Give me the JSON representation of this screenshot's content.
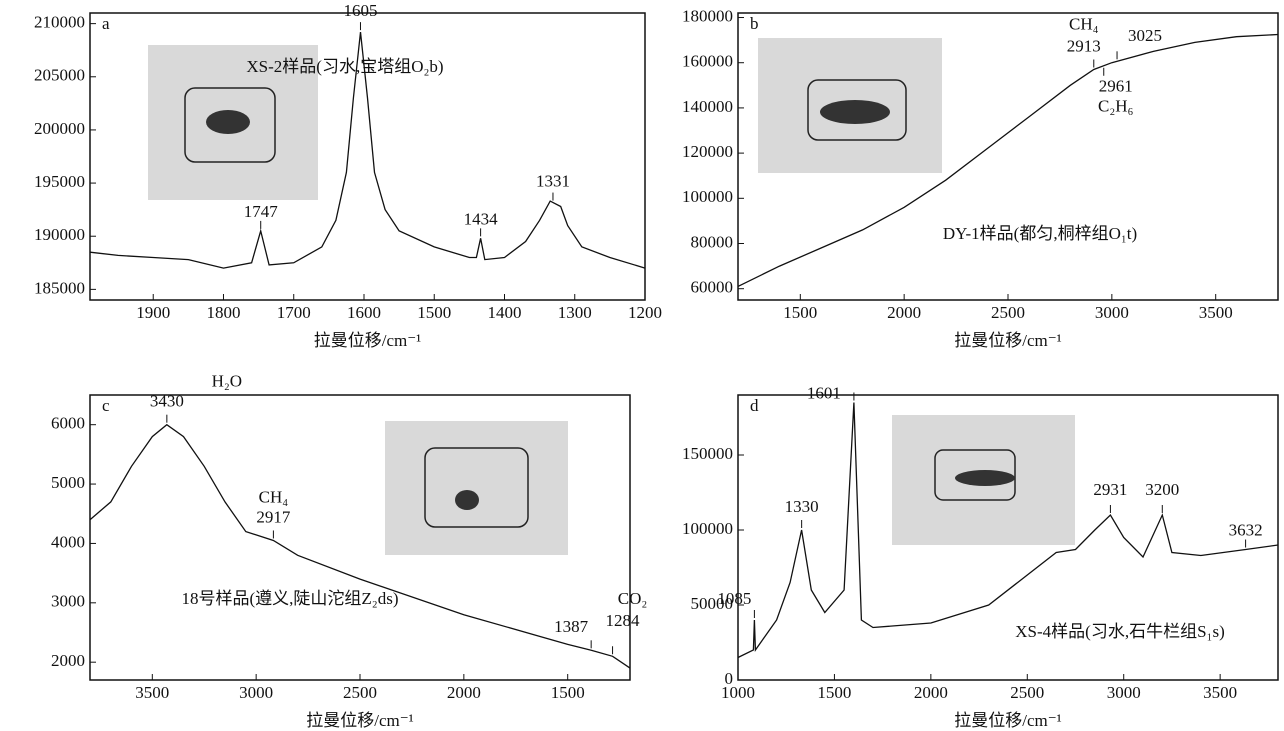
{
  "chart_data": [
    {
      "type": "line",
      "panel": "a",
      "label": "XS-2样品(习水,宝塔组O₂b)",
      "xlabel": "拉曼位移/cm⁻¹",
      "xlim": [
        1990,
        1200
      ],
      "xticks": [
        1900,
        1800,
        1700,
        1600,
        1500,
        1400,
        1300,
        1200
      ],
      "ylim": [
        184000,
        211000
      ],
      "yticks": [
        185000,
        190000,
        195000,
        200000,
        205000,
        210000
      ],
      "x": [
        1990,
        1950,
        1900,
        1850,
        1800,
        1760,
        1747,
        1735,
        1700,
        1660,
        1640,
        1625,
        1615,
        1605,
        1595,
        1585,
        1570,
        1550,
        1500,
        1450,
        1440,
        1434,
        1428,
        1400,
        1370,
        1350,
        1335,
        1320,
        1310,
        1290,
        1250,
        1200
      ],
      "values": [
        188500,
        188200,
        188000,
        187800,
        187000,
        187500,
        190500,
        187300,
        187500,
        189000,
        191500,
        196000,
        203000,
        209200,
        203000,
        196000,
        192500,
        190500,
        189000,
        188000,
        188000,
        189800,
        187800,
        188000,
        189500,
        191500,
        193300,
        192800,
        191000,
        189000,
        188000,
        187000
      ],
      "peaks": [
        {
          "x": 1747
        },
        {
          "x": 1605
        },
        {
          "x": 1434
        },
        {
          "x": 1331
        }
      ]
    },
    {
      "type": "line",
      "panel": "b",
      "label": "DY-1样品(都匀,桐梓组O₁t)",
      "xlabel": "拉曼位移/cm⁻¹",
      "xlim": [
        1200,
        3800
      ],
      "xticks": [
        1500,
        2000,
        2500,
        3000,
        3500
      ],
      "ylim": [
        55000,
        182000
      ],
      "yticks": [
        60000,
        80000,
        100000,
        120000,
        140000,
        160000,
        180000
      ],
      "x": [
        1200,
        1400,
        1600,
        1800,
        2000,
        2200,
        2400,
        2600,
        2800,
        2913,
        3000,
        3200,
        3400,
        3600,
        3800
      ],
      "values": [
        61000,
        70000,
        78000,
        86000,
        96000,
        108000,
        122000,
        136000,
        150000,
        157000,
        160000,
        165000,
        169000,
        171500,
        172500
      ],
      "peaks": [
        {
          "x": 2913,
          "species": "CH₄"
        },
        {
          "x": 3025
        },
        {
          "x": 2961,
          "species": "C₂H₆"
        }
      ]
    },
    {
      "type": "line",
      "panel": "c",
      "label": "18号样品(遵义,陡山沱组Z₂ds)",
      "xlabel": "拉曼位移/cm⁻¹",
      "xlim": [
        3800,
        1200
      ],
      "xticks": [
        3500,
        3000,
        2500,
        2000,
        1500
      ],
      "ylim": [
        1700,
        6500
      ],
      "yticks": [
        2000,
        3000,
        4000,
        5000,
        6000
      ],
      "x": [
        3800,
        3700,
        3600,
        3500,
        3430,
        3350,
        3250,
        3150,
        3050,
        2917,
        2800,
        2500,
        2000,
        1500,
        1387,
        1284,
        1200
      ],
      "values": [
        4400,
        4700,
        5300,
        5800,
        6000,
        5800,
        5300,
        4700,
        4200,
        4050,
        3800,
        3400,
        2800,
        2300,
        2200,
        2100,
        1900
      ],
      "peaks": [
        {
          "x": 3430,
          "species": "H₂O"
        },
        {
          "x": 2917,
          "species": "CH₄"
        },
        {
          "x": 1387
        },
        {
          "x": 1284,
          "species": "CO₂"
        }
      ]
    },
    {
      "type": "line",
      "panel": "d",
      "label": "XS-4样品(习水,石牛栏组S₁s)",
      "xlabel": "拉曼位移/cm⁻¹",
      "xlim": [
        1000,
        3800
      ],
      "xticks": [
        1000,
        1500,
        2000,
        2500,
        3000,
        3500
      ],
      "ylim": [
        0,
        190000
      ],
      "yticks": [
        0,
        50000,
        100000,
        150000
      ],
      "x": [
        1000,
        1080,
        1085,
        1090,
        1200,
        1270,
        1330,
        1380,
        1450,
        1550,
        1601,
        1640,
        1700,
        2000,
        2300,
        2500,
        2650,
        2750,
        2850,
        2931,
        3000,
        3100,
        3200,
        3250,
        3400,
        3632,
        3800
      ],
      "values": [
        15000,
        20000,
        40000,
        20000,
        40000,
        65000,
        100000,
        60000,
        45000,
        60000,
        185000,
        40000,
        35000,
        38000,
        50000,
        70000,
        85000,
        87000,
        100000,
        110000,
        95000,
        82000,
        110000,
        85000,
        83000,
        87000,
        90000
      ],
      "peaks": [
        {
          "x": 1085
        },
        {
          "x": 1330
        },
        {
          "x": 1601
        },
        {
          "x": 2931
        },
        {
          "x": 3200
        },
        {
          "x": 3632
        }
      ]
    }
  ]
}
